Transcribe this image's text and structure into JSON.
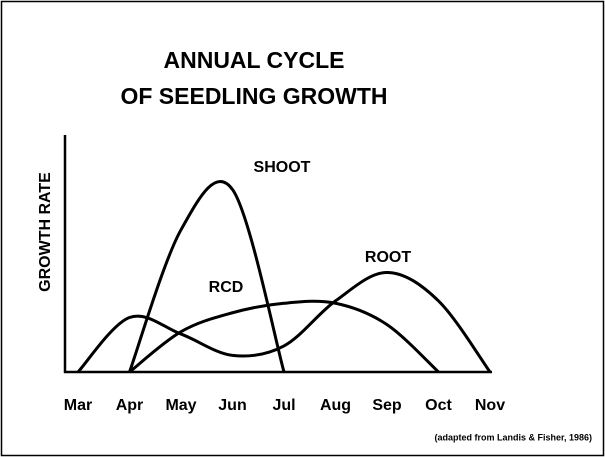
{
  "chart_data": {
    "type": "line",
    "title": [
      "ANNUAL CYCLE",
      "OF SEEDLING GROWTH"
    ],
    "y_label": "GROWTH RATE",
    "source": "(adapted from Landis & Fisher, 1986)",
    "categories": [
      "Mar",
      "Apr",
      "May",
      "Jun",
      "Jul",
      "Aug",
      "Sep",
      "Oct",
      "Nov"
    ],
    "ylim": [
      0,
      100
    ],
    "series": [
      {
        "name": "SHOOT",
        "color": "#000000",
        "values": [
          null,
          0,
          60,
          77,
          0,
          null,
          null,
          null,
          null
        ]
      },
      {
        "name": "ROOT",
        "color": "#000000",
        "values": [
          0,
          23,
          16,
          7,
          11,
          30,
          42,
          30,
          0
        ]
      },
      {
        "name": "RCD",
        "color": "#000000",
        "values": [
          null,
          0,
          17,
          25,
          29,
          29,
          20,
          0,
          null
        ]
      }
    ]
  }
}
